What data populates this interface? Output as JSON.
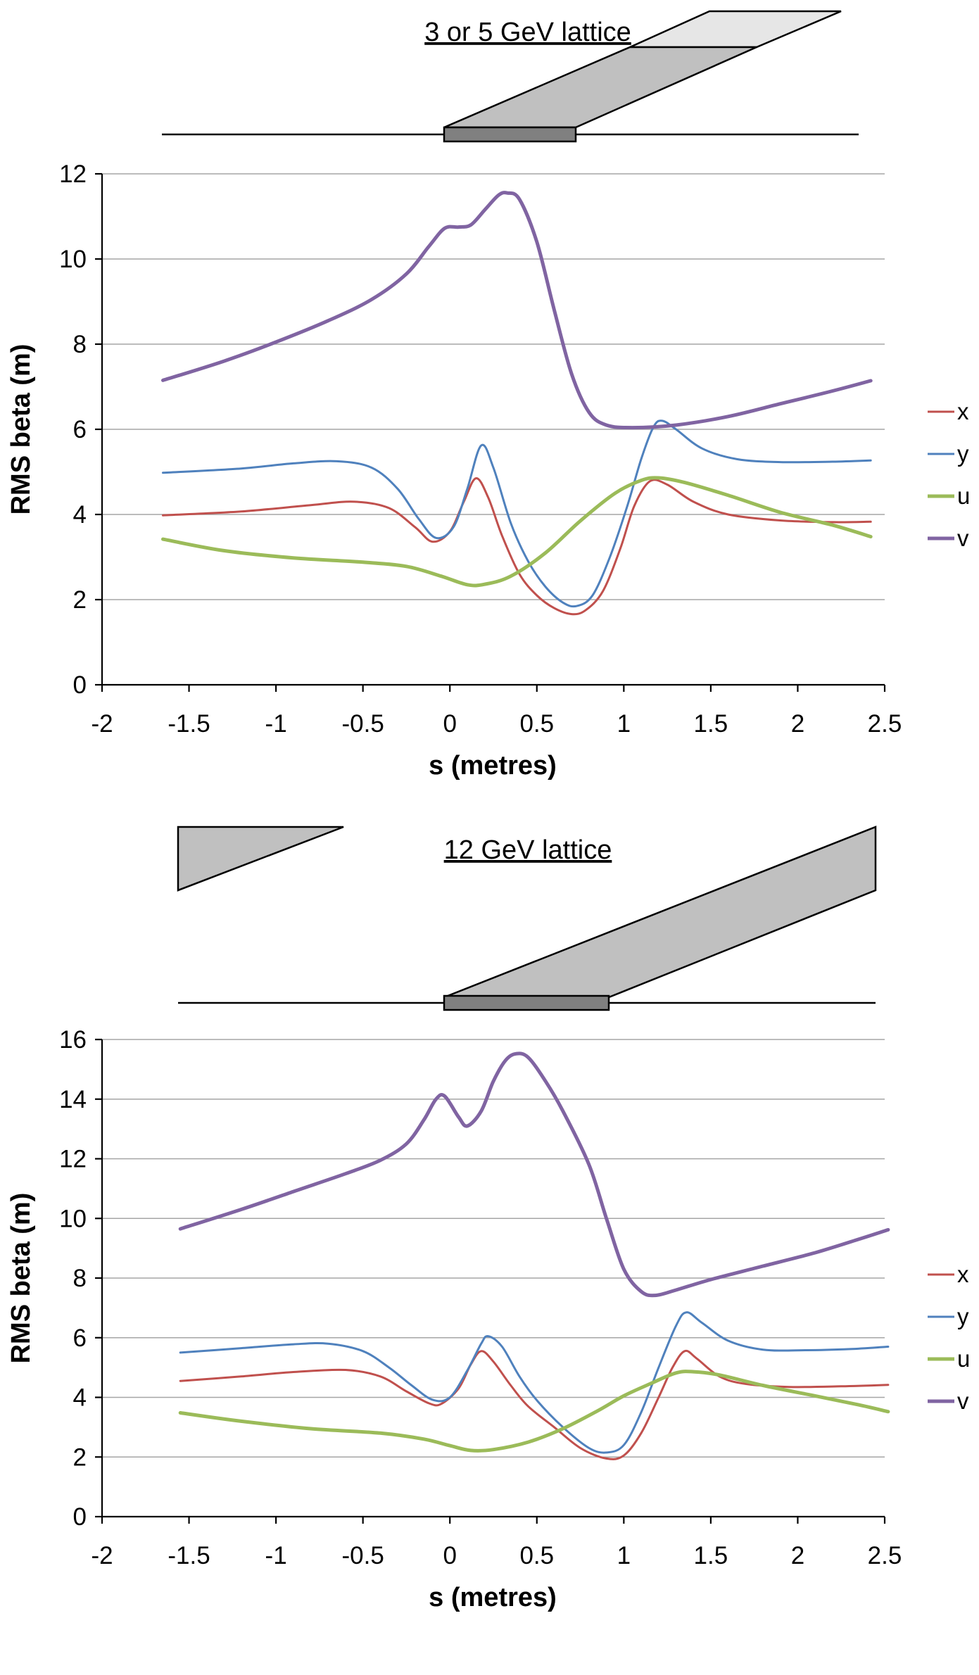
{
  "chart_data": [
    {
      "type": "line",
      "title": "3 or 5 GeV lattice",
      "xlabel": "s (metres)",
      "ylabel": "RMS beta (m)",
      "xlim": [
        -2,
        2.5
      ],
      "ylim": [
        0,
        12
      ],
      "xticks": [
        "-2",
        "-1.5",
        "-1",
        "-0.5",
        "0",
        "0.5",
        "1",
        "1.5",
        "2",
        "2.5"
      ],
      "yticks": [
        "0",
        "2",
        "4",
        "6",
        "8",
        "10",
        "12"
      ],
      "grid": "horizontal",
      "legend_position": "right",
      "series": [
        {
          "name": "x",
          "color": "#c0504d",
          "width": 3,
          "points": [
            [
              -1.65,
              3.98
            ],
            [
              -1.2,
              4.07
            ],
            [
              -0.8,
              4.22
            ],
            [
              -0.55,
              4.3
            ],
            [
              -0.35,
              4.15
            ],
            [
              -0.2,
              3.7
            ],
            [
              -0.1,
              3.36
            ],
            [
              0.0,
              3.6
            ],
            [
              0.08,
              4.3
            ],
            [
              0.15,
              4.85
            ],
            [
              0.22,
              4.4
            ],
            [
              0.3,
              3.5
            ],
            [
              0.4,
              2.6
            ],
            [
              0.5,
              2.1
            ],
            [
              0.6,
              1.8
            ],
            [
              0.7,
              1.66
            ],
            [
              0.78,
              1.75
            ],
            [
              0.88,
              2.2
            ],
            [
              0.98,
              3.2
            ],
            [
              1.06,
              4.2
            ],
            [
              1.15,
              4.78
            ],
            [
              1.25,
              4.7
            ],
            [
              1.4,
              4.3
            ],
            [
              1.6,
              4.0
            ],
            [
              1.9,
              3.86
            ],
            [
              2.2,
              3.82
            ],
            [
              2.42,
              3.83
            ]
          ]
        },
        {
          "name": "y",
          "color": "#4f81bd",
          "width": 3,
          "points": [
            [
              -1.65,
              4.98
            ],
            [
              -1.2,
              5.08
            ],
            [
              -0.9,
              5.2
            ],
            [
              -0.65,
              5.25
            ],
            [
              -0.45,
              5.1
            ],
            [
              -0.3,
              4.6
            ],
            [
              -0.18,
              3.9
            ],
            [
              -0.08,
              3.45
            ],
            [
              0.02,
              3.7
            ],
            [
              0.1,
              4.6
            ],
            [
              0.18,
              5.62
            ],
            [
              0.25,
              5.1
            ],
            [
              0.35,
              3.8
            ],
            [
              0.45,
              2.9
            ],
            [
              0.55,
              2.3
            ],
            [
              0.65,
              1.93
            ],
            [
              0.73,
              1.85
            ],
            [
              0.82,
              2.1
            ],
            [
              0.92,
              3.0
            ],
            [
              1.02,
              4.2
            ],
            [
              1.1,
              5.3
            ],
            [
              1.17,
              6.05
            ],
            [
              1.22,
              6.2
            ],
            [
              1.3,
              6.0
            ],
            [
              1.45,
              5.55
            ],
            [
              1.65,
              5.3
            ],
            [
              1.9,
              5.23
            ],
            [
              2.2,
              5.24
            ],
            [
              2.42,
              5.27
            ]
          ]
        },
        {
          "name": "u",
          "color": "#9bbb59",
          "width": 5,
          "points": [
            [
              -1.65,
              3.42
            ],
            [
              -1.3,
              3.15
            ],
            [
              -0.9,
              2.98
            ],
            [
              -0.5,
              2.88
            ],
            [
              -0.25,
              2.78
            ],
            [
              -0.05,
              2.55
            ],
            [
              0.1,
              2.35
            ],
            [
              0.2,
              2.36
            ],
            [
              0.35,
              2.55
            ],
            [
              0.55,
              3.1
            ],
            [
              0.75,
              3.85
            ],
            [
              0.95,
              4.5
            ],
            [
              1.1,
              4.8
            ],
            [
              1.2,
              4.86
            ],
            [
              1.35,
              4.75
            ],
            [
              1.6,
              4.45
            ],
            [
              1.9,
              4.05
            ],
            [
              2.2,
              3.75
            ],
            [
              2.42,
              3.48
            ]
          ]
        },
        {
          "name": "v",
          "color": "#8064a2",
          "width": 5,
          "points": [
            [
              -1.65,
              7.15
            ],
            [
              -1.3,
              7.6
            ],
            [
              -1.0,
              8.05
            ],
            [
              -0.7,
              8.55
            ],
            [
              -0.45,
              9.05
            ],
            [
              -0.25,
              9.65
            ],
            [
              -0.12,
              10.3
            ],
            [
              -0.03,
              10.72
            ],
            [
              0.05,
              10.75
            ],
            [
              0.12,
              10.8
            ],
            [
              0.2,
              11.15
            ],
            [
              0.28,
              11.5
            ],
            [
              0.33,
              11.55
            ],
            [
              0.4,
              11.4
            ],
            [
              0.5,
              10.4
            ],
            [
              0.6,
              8.8
            ],
            [
              0.7,
              7.3
            ],
            [
              0.8,
              6.4
            ],
            [
              0.9,
              6.1
            ],
            [
              1.05,
              6.04
            ],
            [
              1.3,
              6.1
            ],
            [
              1.6,
              6.3
            ],
            [
              1.9,
              6.6
            ],
            [
              2.2,
              6.9
            ],
            [
              2.42,
              7.14
            ]
          ]
        }
      ]
    },
    {
      "type": "line",
      "title": "12 GeV lattice",
      "xlabel": "s (metres)",
      "ylabel": "RMS beta (m)",
      "xlim": [
        -2,
        2.5
      ],
      "ylim": [
        0,
        16
      ],
      "xticks": [
        "-2",
        "-1.5",
        "-1",
        "-0.5",
        "0",
        "0.5",
        "1",
        "1.5",
        "2",
        "2.5"
      ],
      "yticks": [
        "0",
        "2",
        "4",
        "6",
        "8",
        "10",
        "12",
        "14",
        "16"
      ],
      "grid": "horizontal",
      "legend_position": "right",
      "series": [
        {
          "name": "x",
          "color": "#c0504d",
          "width": 3,
          "points": [
            [
              -1.55,
              4.55
            ],
            [
              -1.2,
              4.7
            ],
            [
              -0.9,
              4.85
            ],
            [
              -0.6,
              4.92
            ],
            [
              -0.4,
              4.7
            ],
            [
              -0.25,
              4.2
            ],
            [
              -0.12,
              3.8
            ],
            [
              -0.05,
              3.78
            ],
            [
              0.05,
              4.3
            ],
            [
              0.12,
              5.1
            ],
            [
              0.18,
              5.55
            ],
            [
              0.25,
              5.2
            ],
            [
              0.35,
              4.4
            ],
            [
              0.45,
              3.7
            ],
            [
              0.6,
              3.0
            ],
            [
              0.75,
              2.3
            ],
            [
              0.9,
              1.95
            ],
            [
              1.0,
              2.05
            ],
            [
              1.1,
              2.8
            ],
            [
              1.2,
              4.0
            ],
            [
              1.28,
              5.0
            ],
            [
              1.35,
              5.55
            ],
            [
              1.42,
              5.3
            ],
            [
              1.55,
              4.7
            ],
            [
              1.7,
              4.45
            ],
            [
              1.95,
              4.35
            ],
            [
              2.25,
              4.37
            ],
            [
              2.52,
              4.42
            ]
          ]
        },
        {
          "name": "y",
          "color": "#4f81bd",
          "width": 3,
          "points": [
            [
              -1.55,
              5.5
            ],
            [
              -1.2,
              5.65
            ],
            [
              -0.9,
              5.78
            ],
            [
              -0.7,
              5.8
            ],
            [
              -0.5,
              5.55
            ],
            [
              -0.35,
              5.0
            ],
            [
              -0.22,
              4.4
            ],
            [
              -0.1,
              3.92
            ],
            [
              0.0,
              4.0
            ],
            [
              0.1,
              4.9
            ],
            [
              0.18,
              5.8
            ],
            [
              0.22,
              6.05
            ],
            [
              0.3,
              5.7
            ],
            [
              0.4,
              4.7
            ],
            [
              0.5,
              3.9
            ],
            [
              0.65,
              3.0
            ],
            [
              0.8,
              2.3
            ],
            [
              0.9,
              2.15
            ],
            [
              1.0,
              2.4
            ],
            [
              1.1,
              3.5
            ],
            [
              1.2,
              5.0
            ],
            [
              1.3,
              6.4
            ],
            [
              1.36,
              6.85
            ],
            [
              1.45,
              6.5
            ],
            [
              1.6,
              5.9
            ],
            [
              1.8,
              5.6
            ],
            [
              2.05,
              5.58
            ],
            [
              2.3,
              5.62
            ],
            [
              2.52,
              5.7
            ]
          ]
        },
        {
          "name": "u",
          "color": "#9bbb59",
          "width": 5,
          "points": [
            [
              -1.55,
              3.48
            ],
            [
              -1.2,
              3.2
            ],
            [
              -0.8,
              2.95
            ],
            [
              -0.4,
              2.8
            ],
            [
              -0.15,
              2.6
            ],
            [
              0.0,
              2.38
            ],
            [
              0.12,
              2.22
            ],
            [
              0.25,
              2.25
            ],
            [
              0.45,
              2.5
            ],
            [
              0.65,
              2.95
            ],
            [
              0.85,
              3.55
            ],
            [
              1.0,
              4.05
            ],
            [
              1.15,
              4.45
            ],
            [
              1.3,
              4.82
            ],
            [
              1.4,
              4.86
            ],
            [
              1.55,
              4.75
            ],
            [
              1.8,
              4.4
            ],
            [
              2.1,
              4.05
            ],
            [
              2.35,
              3.75
            ],
            [
              2.52,
              3.52
            ]
          ]
        },
        {
          "name": "v",
          "color": "#8064a2",
          "width": 5,
          "points": [
            [
              -1.55,
              9.65
            ],
            [
              -1.2,
              10.3
            ],
            [
              -0.9,
              10.9
            ],
            [
              -0.6,
              11.5
            ],
            [
              -0.4,
              11.95
            ],
            [
              -0.25,
              12.5
            ],
            [
              -0.15,
              13.3
            ],
            [
              -0.08,
              14.0
            ],
            [
              -0.03,
              14.1
            ],
            [
              0.05,
              13.4
            ],
            [
              0.1,
              13.1
            ],
            [
              0.18,
              13.6
            ],
            [
              0.25,
              14.6
            ],
            [
              0.32,
              15.3
            ],
            [
              0.38,
              15.52
            ],
            [
              0.45,
              15.4
            ],
            [
              0.55,
              14.6
            ],
            [
              0.65,
              13.6
            ],
            [
              0.8,
              11.8
            ],
            [
              0.9,
              10.0
            ],
            [
              1.0,
              8.3
            ],
            [
              1.1,
              7.55
            ],
            [
              1.18,
              7.42
            ],
            [
              1.3,
              7.6
            ],
            [
              1.5,
              7.95
            ],
            [
              1.8,
              8.4
            ],
            [
              2.1,
              8.85
            ],
            [
              2.35,
              9.3
            ],
            [
              2.52,
              9.62
            ]
          ]
        }
      ]
    }
  ]
}
